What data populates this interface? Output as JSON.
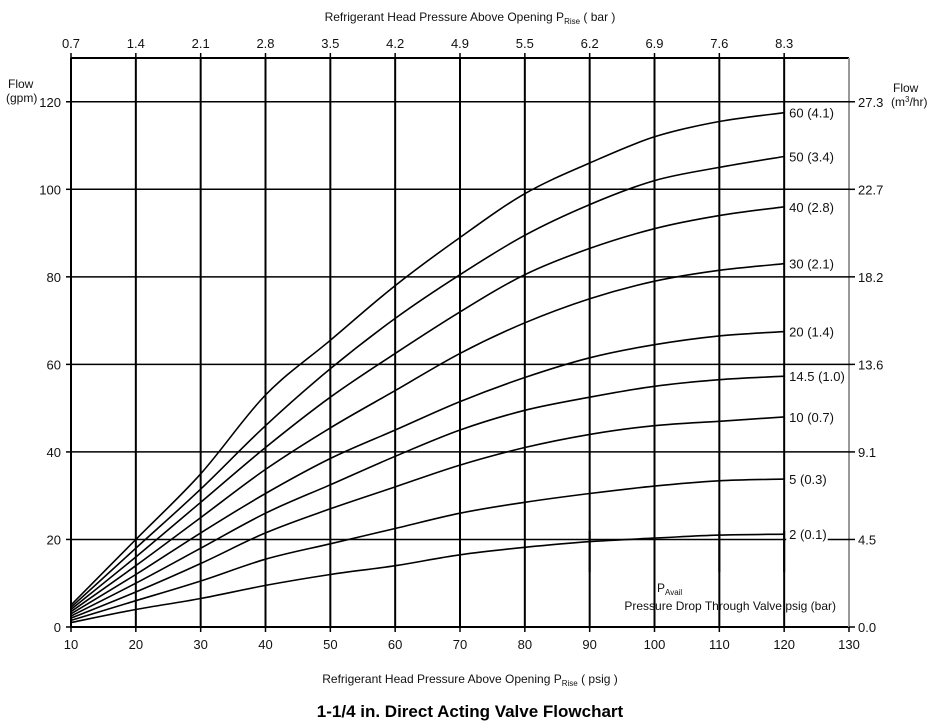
{
  "chart_data": {
    "type": "line",
    "title": "1-1/4 in. Direct Acting Valve Flowchart",
    "xlabel": "Refrigerant Head Pressure  Above Opening P",
    "xlabel_sub": "Rise",
    "xlabel_unit": " ( psig )",
    "x2label": "Refrigerant Head Pressure  Above Opening P",
    "x2label_sub": "Rise",
    "x2label_unit": " ( bar )",
    "ylabel_line1": "Flow",
    "ylabel_line2": "(gpm)",
    "y2label_line1": "Flow",
    "y2label_line2_pre": "(m",
    "y2label_line2_sup": "3",
    "y2label_line2_post": "/hr)",
    "xlim": [
      10,
      130
    ],
    "ylim": [
      0,
      130
    ],
    "grid": true,
    "x_ticks": [
      10,
      20,
      30,
      40,
      50,
      60,
      70,
      80,
      90,
      100,
      110,
      120,
      130
    ],
    "y_ticks": [
      0,
      20,
      40,
      60,
      80,
      100,
      120
    ],
    "x2_ticks": [
      {
        "x": 10,
        "label": "0.7"
      },
      {
        "x": 20,
        "label": "1.4"
      },
      {
        "x": 30,
        "label": "2.1"
      },
      {
        "x": 40,
        "label": "2.8"
      },
      {
        "x": 50,
        "label": "3.5"
      },
      {
        "x": 60,
        "label": "4.2"
      },
      {
        "x": 70,
        "label": "4.9"
      },
      {
        "x": 80,
        "label": "5.5"
      },
      {
        "x": 90,
        "label": "6.2"
      },
      {
        "x": 100,
        "label": "6.9"
      },
      {
        "x": 110,
        "label": "7.6"
      },
      {
        "x": 120,
        "label": "8.3"
      }
    ],
    "y2_ticks": [
      {
        "y": 0,
        "label": "0.0"
      },
      {
        "y": 20,
        "label": "4.5"
      },
      {
        "y": 40,
        "label": "9.1"
      },
      {
        "y": 60,
        "label": "13.6"
      },
      {
        "y": 80,
        "label": "18.2"
      },
      {
        "y": 100,
        "label": "22.7"
      },
      {
        "y": 120,
        "label": "27.3"
      }
    ],
    "pavail_label": "P",
    "pavail_sub": "Avail",
    "pavail_caption": "Pressure Drop Through Valve psig (bar)",
    "pavail_markers": [
      90,
      100,
      110,
      120
    ],
    "series": [
      {
        "name": "2 (0.1)",
        "x": [
          10,
          20,
          30,
          40,
          50,
          60,
          70,
          80,
          90,
          100,
          110,
          120
        ],
        "y": [
          1,
          4,
          6.5,
          9.5,
          12,
          14,
          16.5,
          18.2,
          19.5,
          20.3,
          21,
          21.2
        ]
      },
      {
        "name": "5 (0.3)",
        "x": [
          10,
          20,
          30,
          40,
          50,
          60,
          70,
          80,
          90,
          100,
          110,
          120
        ],
        "y": [
          1.5,
          6,
          10.5,
          15.5,
          19,
          22.5,
          26,
          28.5,
          30.5,
          32.2,
          33.4,
          33.8
        ]
      },
      {
        "name": "10 (0.7)",
        "x": [
          10,
          20,
          30,
          40,
          50,
          60,
          70,
          80,
          90,
          100,
          110,
          120
        ],
        "y": [
          2,
          8,
          14.5,
          21.5,
          27,
          32,
          37,
          41,
          44,
          46,
          47,
          48
        ]
      },
      {
        "name": "14.5 (1.0)",
        "x": [
          10,
          20,
          30,
          40,
          50,
          60,
          70,
          80,
          90,
          100,
          110,
          120
        ],
        "y": [
          2.5,
          10,
          18,
          26,
          32.5,
          39,
          45,
          49.5,
          52.5,
          55,
          56.5,
          57.3
        ]
      },
      {
        "name": "20 (1.4)",
        "x": [
          10,
          20,
          30,
          40,
          50,
          60,
          70,
          80,
          90,
          100,
          110,
          120
        ],
        "y": [
          3,
          12,
          21.5,
          30.5,
          38.5,
          45,
          51.5,
          57,
          61.5,
          64.5,
          66.5,
          67.5
        ]
      },
      {
        "name": "30 (2.1)",
        "x": [
          10,
          20,
          30,
          40,
          50,
          60,
          70,
          80,
          90,
          100,
          110,
          120
        ],
        "y": [
          3.5,
          14,
          25,
          36,
          45.5,
          54,
          62.5,
          69.5,
          75,
          79,
          81.5,
          83
        ]
      },
      {
        "name": "40 (2.8)",
        "x": [
          10,
          20,
          30,
          40,
          50,
          60,
          70,
          80,
          90,
          100,
          110,
          120
        ],
        "y": [
          4,
          16,
          28.5,
          41,
          52.5,
          62.5,
          72,
          80.5,
          86.5,
          91,
          94,
          96
        ]
      },
      {
        "name": "50 (3.4)",
        "x": [
          10,
          20,
          30,
          40,
          50,
          60,
          70,
          80,
          90,
          100,
          110,
          120
        ],
        "y": [
          4.5,
          18,
          31.5,
          46,
          59,
          70.5,
          80.5,
          89.5,
          96.5,
          102,
          105,
          107.5
        ]
      },
      {
        "name": "60 (4.1)",
        "x": [
          10,
          20,
          30,
          40,
          50,
          60,
          70,
          80,
          90,
          100,
          110,
          120
        ],
        "y": [
          5,
          20,
          35,
          53,
          65.5,
          78,
          89,
          99,
          106,
          112,
          115.5,
          117.5
        ]
      }
    ]
  }
}
